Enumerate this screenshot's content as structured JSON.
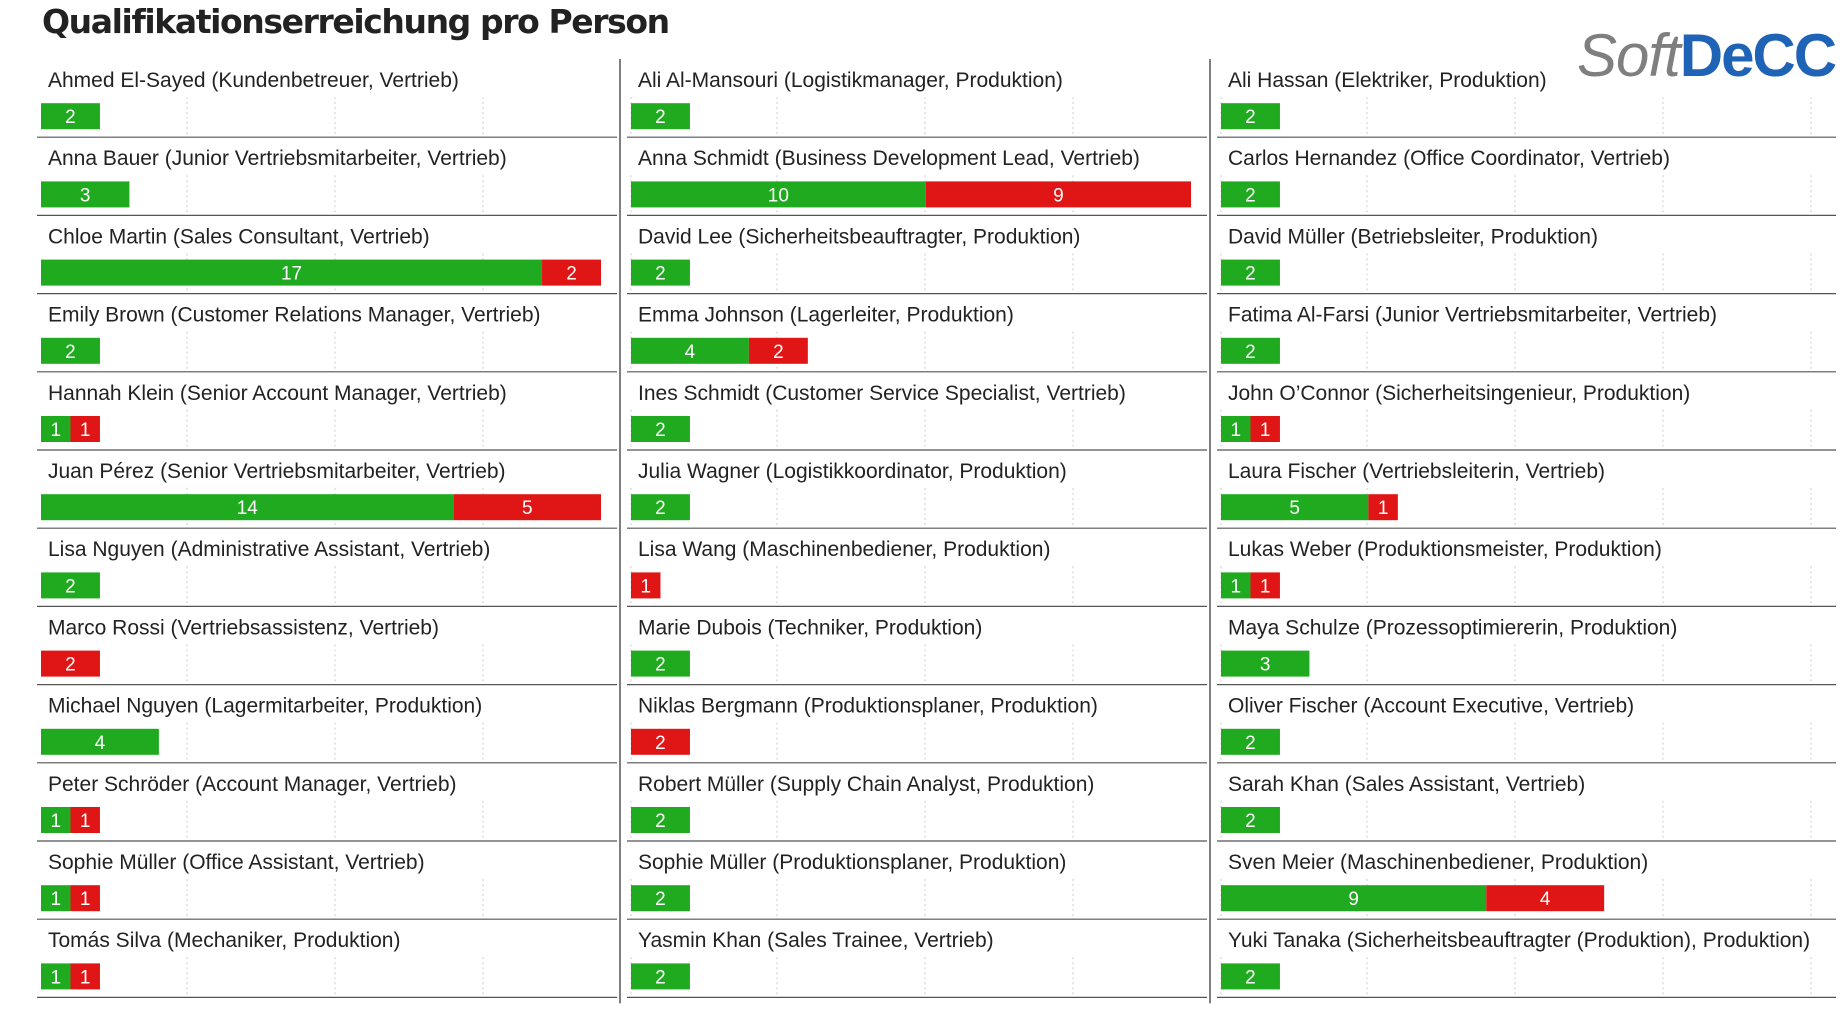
{
  "title": "Qualifikationserreichung pro Person",
  "logo": {
    "part1": "Soft",
    "part2": "DeCC"
  },
  "colors": {
    "achieved": "#1faa1f",
    "missing": "#e01515",
    "grid": "#cccccc",
    "rule": "#555555"
  },
  "chart_data": {
    "type": "bar",
    "stacked": true,
    "orientation": "horizontal",
    "layout": "small-multiples",
    "columns": 3,
    "xlim": [
      0,
      19
    ],
    "series": [
      {
        "color": "#1faa1f",
        "key": "green"
      },
      {
        "color": "#e01515",
        "key": "red"
      }
    ],
    "panels": [
      {
        "label": "Ahmed El-Sayed (Kundenbetreuer, Vertrieb)",
        "green": 2,
        "red": 0
      },
      {
        "label": "Ali Al-Mansouri (Logistikmanager, Produktion)",
        "green": 2,
        "red": 0
      },
      {
        "label": "Ali Hassan (Elektriker, Produktion)",
        "green": 2,
        "red": 0
      },
      {
        "label": "Anna Bauer (Junior Vertriebsmitarbeiter, Vertrieb)",
        "green": 3,
        "red": 0
      },
      {
        "label": "Anna Schmidt (Business Development Lead, Vertrieb)",
        "green": 10,
        "red": 9
      },
      {
        "label": "Carlos Hernandez (Office Coordinator, Vertrieb)",
        "green": 2,
        "red": 0
      },
      {
        "label": "Chloe Martin (Sales Consultant, Vertrieb)",
        "green": 17,
        "red": 2
      },
      {
        "label": "David Lee (Sicherheitsbeauftragter, Produktion)",
        "green": 2,
        "red": 0
      },
      {
        "label": "David Müller (Betriebsleiter, Produktion)",
        "green": 2,
        "red": 0
      },
      {
        "label": "Emily Brown (Customer Relations Manager, Vertrieb)",
        "green": 2,
        "red": 0
      },
      {
        "label": "Emma Johnson (Lagerleiter, Produktion)",
        "green": 4,
        "red": 2
      },
      {
        "label": "Fatima Al-Farsi (Junior Vertriebsmitarbeiter, Vertrieb)",
        "green": 2,
        "red": 0
      },
      {
        "label": "Hannah Klein (Senior Account Manager, Vertrieb)",
        "green": 1,
        "red": 1
      },
      {
        "label": "Ines Schmidt (Customer Service Specialist, Vertrieb)",
        "green": 2,
        "red": 0
      },
      {
        "label": "John O’Connor (Sicherheitsingenieur, Produktion)",
        "green": 1,
        "red": 1
      },
      {
        "label": "Juan Pérez (Senior Vertriebsmitarbeiter, Vertrieb)",
        "green": 14,
        "red": 5
      },
      {
        "label": "Julia Wagner (Logistikkoordinator, Produktion)",
        "green": 2,
        "red": 0
      },
      {
        "label": "Laura Fischer (Vertriebsleiterin, Vertrieb)",
        "green": 5,
        "red": 1
      },
      {
        "label": "Lisa Nguyen (Administrative Assistant, Vertrieb)",
        "green": 2,
        "red": 0
      },
      {
        "label": "Lisa Wang (Maschinenbediener, Produktion)",
        "green": 0,
        "red": 1
      },
      {
        "label": "Lukas Weber (Produktionsmeister, Produktion)",
        "green": 1,
        "red": 1
      },
      {
        "label": "Marco Rossi (Vertriebsassistenz, Vertrieb)",
        "green": 0,
        "red": 2
      },
      {
        "label": "Marie Dubois (Techniker, Produktion)",
        "green": 2,
        "red": 0
      },
      {
        "label": "Maya Schulze (Prozessoptimiererin, Produktion)",
        "green": 3,
        "red": 0
      },
      {
        "label": "Michael Nguyen (Lagermitarbeiter, Produktion)",
        "green": 4,
        "red": 0
      },
      {
        "label": "Niklas Bergmann (Produktionsplaner, Produktion)",
        "green": 0,
        "red": 2
      },
      {
        "label": "Oliver Fischer (Account Executive, Vertrieb)",
        "green": 2,
        "red": 0
      },
      {
        "label": "Peter Schröder (Account Manager, Vertrieb)",
        "green": 1,
        "red": 1
      },
      {
        "label": "Robert Müller (Supply Chain Analyst, Produktion)",
        "green": 2,
        "red": 0
      },
      {
        "label": "Sarah Khan (Sales Assistant, Vertrieb)",
        "green": 2,
        "red": 0
      },
      {
        "label": "Sophie Müller (Office Assistant, Vertrieb)",
        "green": 1,
        "red": 1
      },
      {
        "label": "Sophie Müller (Produktionsplaner, Produktion)",
        "green": 2,
        "red": 0
      },
      {
        "label": "Sven Meier (Maschinenbediener, Produktion)",
        "green": 9,
        "red": 4
      },
      {
        "label": "Tomás Silva (Mechaniker, Produktion)",
        "green": 1,
        "red": 1
      },
      {
        "label": "Yasmin Khan (Sales Trainee, Vertrieb)",
        "green": 2,
        "red": 0
      },
      {
        "label": "Yuki Tanaka (Sicherheitsbeauftragter (Produktion), Produktion)",
        "green": 2,
        "red": 0
      }
    ]
  }
}
